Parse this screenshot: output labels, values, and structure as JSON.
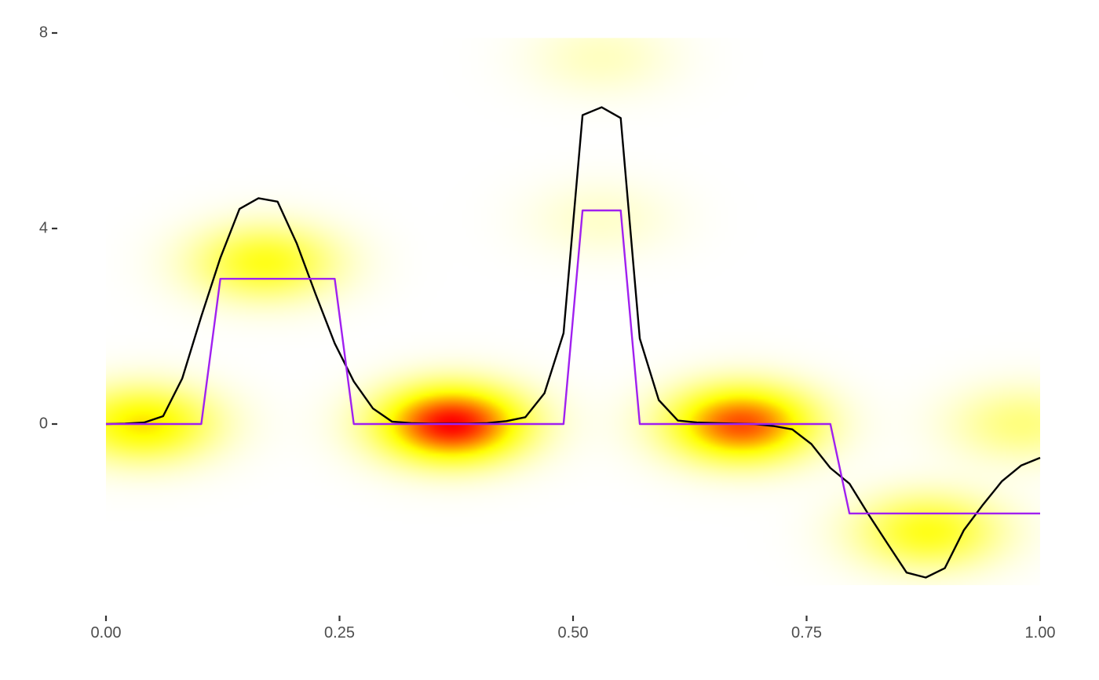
{
  "chart_data": {
    "type": "line",
    "title": "",
    "xlabel": "",
    "ylabel": "",
    "xlim": [
      0,
      1
    ],
    "ylim": [
      -3.8,
      8
    ],
    "x_ticks": [
      "0.00",
      "0.25",
      "0.50",
      "0.75",
      "1.00"
    ],
    "x_tick_values": [
      0,
      0.25,
      0.5,
      0.75,
      1
    ],
    "y_ticks": [
      "0",
      "4",
      "8"
    ],
    "y_tick_values": [
      0,
      4,
      8
    ],
    "grid": false,
    "legend": "none",
    "background": {
      "type": "heatmap",
      "description": "2D density of sampled points",
      "colors": [
        "#ffffff",
        "#ffff00",
        "#ff0000"
      ],
      "xlim": [
        0,
        1
      ],
      "ylim": [
        -3.3,
        7.9
      ],
      "density_peaks": [
        {
          "x": 0.04,
          "y": 0.0,
          "weight": 0.55
        },
        {
          "x": 0.37,
          "y": 0.0,
          "weight": 1.0
        },
        {
          "x": 0.68,
          "y": 0.0,
          "weight": 0.85
        },
        {
          "x": 0.98,
          "y": 0.0,
          "weight": 0.25
        },
        {
          "x": 0.17,
          "y": 3.3,
          "weight": 0.45
        },
        {
          "x": 0.53,
          "y": 7.5,
          "weight": 0.12
        },
        {
          "x": 0.53,
          "y": 4.2,
          "weight": 0.1
        },
        {
          "x": 0.88,
          "y": -2.2,
          "weight": 0.45
        }
      ]
    },
    "series": [
      {
        "color": "#000000",
        "x": [
          0.0,
          0.0204,
          0.0408,
          0.0612,
          0.0816,
          0.102,
          0.1224,
          0.1429,
          0.1633,
          0.1837,
          0.2041,
          0.2245,
          0.2449,
          0.2653,
          0.2857,
          0.3061,
          0.3265,
          0.3469,
          0.3673,
          0.3878,
          0.4082,
          0.4286,
          0.449,
          0.4694,
          0.4898,
          0.5102,
          0.5306,
          0.551,
          0.5714,
          0.5918,
          0.6122,
          0.6327,
          0.6531,
          0.6735,
          0.6939,
          0.7143,
          0.7347,
          0.7551,
          0.7755,
          0.7959,
          0.8163,
          0.8367,
          0.8571,
          0.8776,
          0.898,
          0.9184,
          0.9388,
          0.9592,
          0.9796,
          1.0
        ],
        "y": [
          0.0,
          0.01,
          0.03,
          0.16,
          0.93,
          2.2,
          3.4,
          4.4,
          4.62,
          4.55,
          3.7,
          2.65,
          1.65,
          0.87,
          0.32,
          0.05,
          0.02,
          0.01,
          0.01,
          0.01,
          0.02,
          0.06,
          0.14,
          0.63,
          1.86,
          6.32,
          6.48,
          6.26,
          1.75,
          0.49,
          0.07,
          0.03,
          0.02,
          0.01,
          0.0,
          -0.04,
          -0.11,
          -0.41,
          -0.9,
          -1.22,
          -1.85,
          -2.45,
          -3.04,
          -3.14,
          -2.95,
          -2.17,
          -1.65,
          -1.17,
          -0.85,
          -0.69
        ]
      },
      {
        "color": "#a020f0",
        "step_points": {
          "x": [
            0.0,
            0.102,
            0.1224,
            0.2449,
            0.2653,
            0.4898,
            0.5102,
            0.551,
            0.5714,
            0.7755,
            0.7959,
            1.0
          ],
          "y": [
            0.0,
            0.0,
            2.97,
            2.97,
            0.0,
            0.0,
            4.37,
            4.37,
            0.0,
            0.0,
            -1.83,
            -1.83
          ]
        }
      }
    ]
  }
}
